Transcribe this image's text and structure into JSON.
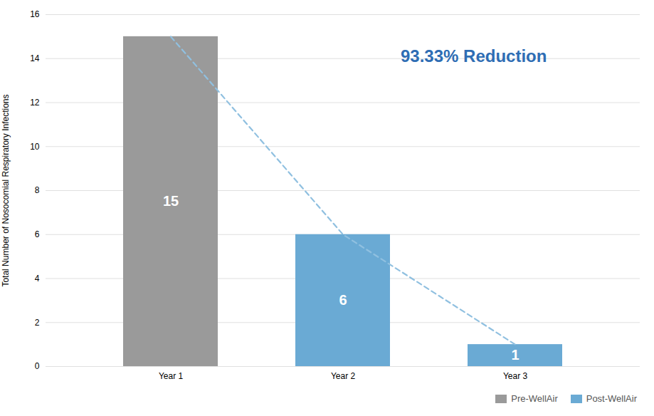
{
  "chart_data": {
    "type": "bar",
    "categories": [
      "Year 1",
      "Year 2",
      "Year 3"
    ],
    "series": [
      {
        "name": "Pre-WellAir",
        "color": "#9a9a9a",
        "values": [
          15,
          null,
          null
        ]
      },
      {
        "name": "Post-WellAir",
        "color": "#6aaad4",
        "values": [
          null,
          6,
          1
        ]
      },
      {
        "type": "line",
        "line_style": "dashed",
        "color": "#90c0e0",
        "values": [
          15,
          6,
          1
        ]
      }
    ],
    "ylabel": "Total Number of Nosocomial Respiratory Infections",
    "ylim": [
      0,
      16
    ],
    "yticks": [
      0,
      2,
      4,
      6,
      8,
      10,
      12,
      14,
      16
    ],
    "grid": true,
    "data_labels": true,
    "legend": "lower right",
    "annotations": [
      {
        "text": "93.33% Reduction",
        "color": "#2e6db4"
      }
    ]
  }
}
